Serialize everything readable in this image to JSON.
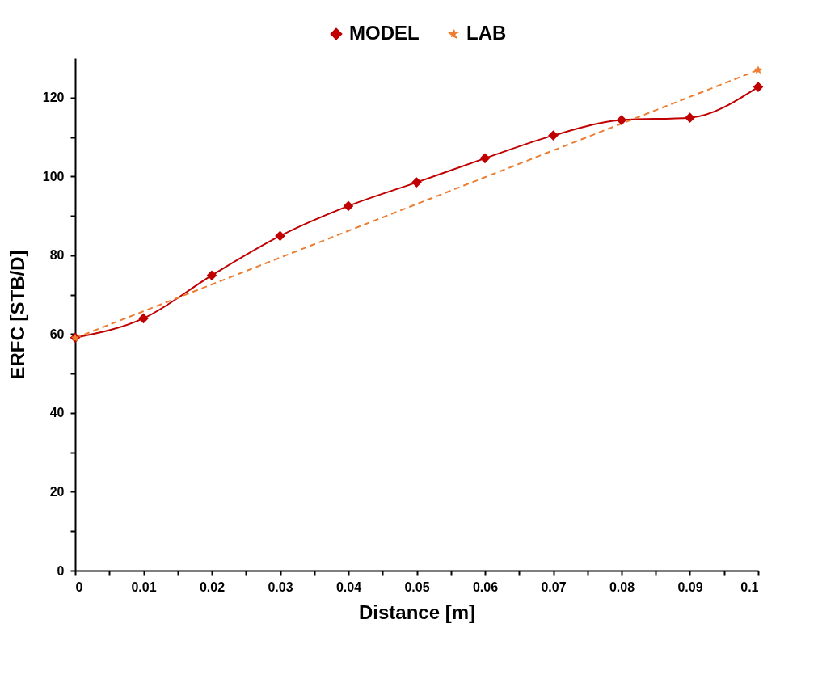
{
  "chart_data": {
    "type": "line",
    "xlabel": "Distance [m]",
    "ylabel": "ERFC [STB/D]",
    "x": [
      0,
      0.01,
      0.02,
      0.03,
      0.04,
      0.05,
      0.06,
      0.07,
      0.08,
      0.09,
      0.1
    ],
    "series": [
      {
        "name": "MODEL",
        "color": "#c00000",
        "marker": "diamond",
        "line_style": "solid",
        "values": [
          59.1,
          64.0,
          74.9,
          84.9,
          92.5,
          98.5,
          104.6,
          110.4,
          114.3,
          114.9,
          122.7
        ]
      },
      {
        "name": "LAB",
        "color": "#ed7d31",
        "marker": "star",
        "line_style": "dashed",
        "x": [
          0,
          0.1
        ],
        "values": [
          59,
          127
        ]
      }
    ],
    "xlim": [
      0,
      0.1
    ],
    "ylim": [
      0,
      130
    ],
    "xticks": [
      0,
      {
        "value": 0.005,
        "label": null
      },
      0.01,
      {
        "value": 0.015,
        "label": null
      },
      0.02,
      {
        "value": 0.025,
        "label": null
      },
      0.03,
      {
        "value": 0.035,
        "label": null
      },
      0.04,
      {
        "value": 0.045,
        "label": null
      },
      0.05,
      {
        "value": 0.055,
        "label": null
      },
      0.06,
      {
        "value": 0.065,
        "label": null
      },
      0.07,
      {
        "value": 0.075,
        "label": null
      },
      0.08,
      {
        "value": 0.085,
        "label": null
      },
      0.09,
      {
        "value": 0.095,
        "label": null
      },
      0.1
    ],
    "yticks": [
      0,
      {
        "value": 10,
        "label": null
      },
      20,
      {
        "value": 30,
        "label": null
      },
      40,
      {
        "value": 50,
        "label": null
      },
      60,
      {
        "value": 70,
        "label": null
      },
      80,
      {
        "value": 90,
        "label": null
      },
      100,
      {
        "value": 110,
        "label": null
      },
      120
    ],
    "grid": false,
    "legend": "top"
  }
}
